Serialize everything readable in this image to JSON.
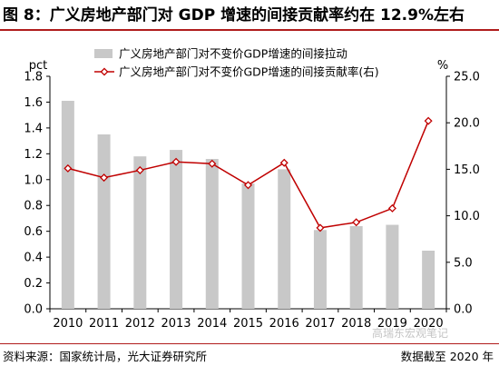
{
  "header": {
    "title": "图 8：广义房地产部门对 GDP 增速的间接贡献率约在 12.9%左右"
  },
  "footer": {
    "source": "资料来源：国家统计局，光大证券研究所",
    "cutoff": "数据截至 2020 年",
    "watermark": "高瑞东宏观笔记"
  },
  "chart_data": {
    "type": "bar+line",
    "categories": [
      "2010",
      "2011",
      "2012",
      "2013",
      "2014",
      "2015",
      "2016",
      "2017",
      "2018",
      "2019",
      "2020"
    ],
    "series": [
      {
        "name": "广义房地产部门对不变价GDP增速的间接拉动",
        "type": "bar",
        "axis": "left",
        "color": "#c8c8c8",
        "values": [
          1.61,
          1.35,
          1.18,
          1.23,
          1.16,
          0.97,
          1.08,
          0.61,
          0.64,
          0.65,
          0.45
        ]
      },
      {
        "name": "广义房地产部门对不变价GDP增速的间接贡献率(右)",
        "type": "line",
        "axis": "right",
        "color": "#c00000",
        "values": [
          15.1,
          14.1,
          14.9,
          15.8,
          15.6,
          13.3,
          15.7,
          8.7,
          9.3,
          10.8,
          20.2
        ]
      }
    ],
    "left_axis": {
      "unit": "pct",
      "ylim": [
        0,
        1.8
      ],
      "ticks": [
        "0.0",
        "0.2",
        "0.4",
        "0.6",
        "0.8",
        "1.0",
        "1.2",
        "1.4",
        "1.6",
        "1.8"
      ]
    },
    "right_axis": {
      "unit": "%",
      "ylim": [
        0,
        25
      ],
      "ticks": [
        "0.0",
        "5.0",
        "10.0",
        "15.0",
        "20.0",
        "25.0"
      ]
    },
    "legend_position": "top-center",
    "grid": false
  }
}
